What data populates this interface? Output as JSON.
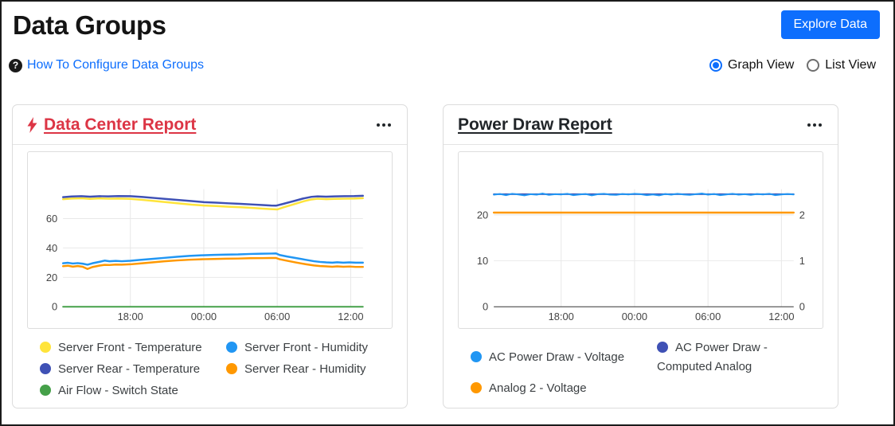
{
  "page": {
    "title": "Data Groups",
    "help_link": "How To Configure Data Groups",
    "explore_button": "Explore Data",
    "view_options": [
      {
        "label": "Graph View",
        "selected": true
      },
      {
        "label": "List View",
        "selected": false
      }
    ]
  },
  "colors": {
    "accent_blue": "#0d6efd",
    "danger_red": "#dc3545",
    "series_yellow": "#FFE43B",
    "series_indigo": "#3F51B5",
    "series_green": "#45A049",
    "series_blue": "#2196F3",
    "series_orange": "#FF9800"
  },
  "cards": [
    {
      "title": "Data Center Report",
      "has_bolt": true,
      "legend_rows": 3,
      "legend": [
        {
          "label": "Server Front - Temperature",
          "color": "#FFE43B"
        },
        {
          "label": "Server Rear - Temperature",
          "color": "#3F51B5"
        },
        {
          "label": "Air Flow - Switch State",
          "color": "#45A049"
        },
        {
          "label": "Server Front - Humidity",
          "color": "#2196F3"
        },
        {
          "label": "Server Rear - Humidity",
          "color": "#FF9800"
        }
      ]
    },
    {
      "title": "Power Draw Report",
      "has_bolt": false,
      "legend_rows": 2,
      "legend": [
        {
          "label": "AC Power Draw - Voltage",
          "color": "#2196F3"
        },
        {
          "label": "Analog 2 - Voltage",
          "color": "#FF9800"
        },
        {
          "label": "AC Power Draw - Computed Analog",
          "color": "#3F51B5"
        }
      ]
    }
  ],
  "chart_data": [
    {
      "type": "line",
      "title": "Data Center Report",
      "x_max": 24.5,
      "x_ticks": [
        {
          "t": 5.5,
          "label": "18:00"
        },
        {
          "t": 11.5,
          "label": "00:00"
        },
        {
          "t": 17.5,
          "label": "06:00"
        },
        {
          "t": 23.5,
          "label": "12:00"
        }
      ],
      "y_left": {
        "min": 0,
        "max": 80,
        "ticks": [
          0,
          20,
          40,
          60
        ]
      },
      "series": [
        {
          "name": "Server Front - Temperature",
          "color": "#FFE43B",
          "width": 2.5,
          "axis": "left",
          "points": [
            [
              0,
              73.2
            ],
            [
              0.7,
              73.6
            ],
            [
              1.5,
              73.8
            ],
            [
              2.2,
              73.4
            ],
            [
              3,
              73.7
            ],
            [
              3.7,
              73.5
            ],
            [
              4.5,
              73.6
            ],
            [
              5.5,
              73.4
            ],
            [
              6.5,
              72.7
            ],
            [
              7.5,
              71.9
            ],
            [
              8.5,
              71.1
            ],
            [
              9.5,
              70.3
            ],
            [
              10.5,
              69.5
            ],
            [
              11.5,
              68.9
            ],
            [
              12.5,
              68.5
            ],
            [
              13.5,
              68.1
            ],
            [
              14.5,
              67.7
            ],
            [
              15.5,
              67.2
            ],
            [
              16.3,
              66.8
            ],
            [
              17,
              66.4
            ],
            [
              17.5,
              66.2
            ],
            [
              18,
              67.6
            ],
            [
              18.8,
              69.6
            ],
            [
              19.6,
              71.6
            ],
            [
              20.3,
              73
            ],
            [
              20.8,
              73.5
            ],
            [
              21.5,
              73.2
            ],
            [
              22.2,
              73.4
            ],
            [
              23,
              73.5
            ],
            [
              23.8,
              73.6
            ],
            [
              24.5,
              73.9
            ]
          ]
        },
        {
          "name": "Server Rear - Temperature",
          "color": "#3F51B5",
          "width": 2.5,
          "axis": "left",
          "points": [
            [
              0,
              74.6
            ],
            [
              0.7,
              75
            ],
            [
              1.5,
              75.2
            ],
            [
              2.2,
              74.9
            ],
            [
              3,
              75.2
            ],
            [
              3.7,
              75.1
            ],
            [
              4.5,
              75.3
            ],
            [
              5.5,
              75.2
            ],
            [
              6.5,
              74.7
            ],
            [
              7.5,
              74
            ],
            [
              8.5,
              73.3
            ],
            [
              9.5,
              72.6
            ],
            [
              10.5,
              71.9
            ],
            [
              11.5,
              71.2
            ],
            [
              12.5,
              70.8
            ],
            [
              13.5,
              70.4
            ],
            [
              14.5,
              70
            ],
            [
              15.5,
              69.6
            ],
            [
              16.3,
              69.2
            ],
            [
              17,
              68.9
            ],
            [
              17.4,
              68.8
            ],
            [
              18,
              70
            ],
            [
              18.8,
              71.8
            ],
            [
              19.6,
              73.6
            ],
            [
              20.3,
              74.8
            ],
            [
              20.8,
              75.1
            ],
            [
              21.5,
              74.9
            ],
            [
              22.2,
              75.1
            ],
            [
              23,
              75.2
            ],
            [
              23.8,
              75.3
            ],
            [
              24.5,
              75.5
            ]
          ]
        },
        {
          "name": "Server Rear - Humidity",
          "color": "#FF9800",
          "width": 2.5,
          "axis": "left",
          "points": [
            [
              0,
              27.6
            ],
            [
              0.4,
              27.9
            ],
            [
              0.8,
              27.3
            ],
            [
              1.2,
              27.7
            ],
            [
              1.6,
              27.2
            ],
            [
              2,
              25.7
            ],
            [
              2.4,
              27
            ],
            [
              3,
              28
            ],
            [
              3.4,
              28.5
            ],
            [
              3.8,
              28.4
            ],
            [
              4.3,
              28.7
            ],
            [
              4.8,
              28.6
            ],
            [
              5.5,
              28.9
            ],
            [
              6.3,
              29.5
            ],
            [
              7.3,
              30.2
            ],
            [
              8.3,
              30.9
            ],
            [
              9.3,
              31.5
            ],
            [
              10.3,
              32
            ],
            [
              11.3,
              32.3
            ],
            [
              12.3,
              32.5
            ],
            [
              13.3,
              32.7
            ],
            [
              14.3,
              32.8
            ],
            [
              15.3,
              33
            ],
            [
              16.2,
              33.1
            ],
            [
              17,
              33.2
            ],
            [
              17.4,
              33.2
            ],
            [
              17.7,
              32.3
            ],
            [
              18.3,
              31.3
            ],
            [
              19,
              30.2
            ],
            [
              19.8,
              29
            ],
            [
              20.5,
              28.1
            ],
            [
              21,
              27.7
            ],
            [
              21.5,
              27.5
            ],
            [
              22,
              27.2
            ],
            [
              22.4,
              27.5
            ],
            [
              22.9,
              27.2
            ],
            [
              23.4,
              27.4
            ],
            [
              23.9,
              27.1
            ],
            [
              24.5,
              27.1
            ]
          ]
        },
        {
          "name": "Server Front - Humidity",
          "color": "#2196F3",
          "width": 2.5,
          "axis": "left",
          "points": [
            [
              0,
              29.6
            ],
            [
              0.4,
              29.9
            ],
            [
              0.8,
              29.4
            ],
            [
              1.2,
              29.7
            ],
            [
              1.6,
              29.3
            ],
            [
              2,
              28.6
            ],
            [
              2.4,
              29.6
            ],
            [
              3,
              30.6
            ],
            [
              3.4,
              31.4
            ],
            [
              3.8,
              30.9
            ],
            [
              4.3,
              31.2
            ],
            [
              4.8,
              31
            ],
            [
              5.5,
              31.3
            ],
            [
              6.3,
              31.9
            ],
            [
              7.3,
              32.6
            ],
            [
              8.3,
              33.3
            ],
            [
              9.3,
              34
            ],
            [
              10.3,
              34.6
            ],
            [
              11.3,
              35
            ],
            [
              12.3,
              35.3
            ],
            [
              13.3,
              35.5
            ],
            [
              14.3,
              35.6
            ],
            [
              15.3,
              35.9
            ],
            [
              16.2,
              36.1
            ],
            [
              17,
              36.2
            ],
            [
              17.4,
              36.3
            ],
            [
              17.7,
              35.2
            ],
            [
              18.3,
              34.2
            ],
            [
              19,
              33.2
            ],
            [
              19.8,
              32
            ],
            [
              20.5,
              31
            ],
            [
              21,
              30.5
            ],
            [
              21.5,
              30.2
            ],
            [
              22,
              30
            ],
            [
              22.4,
              30.3
            ],
            [
              22.9,
              30
            ],
            [
              23.4,
              30.2
            ],
            [
              23.9,
              30
            ],
            [
              24.5,
              30
            ]
          ]
        },
        {
          "name": "Air Flow - Switch State",
          "color": "#45A049",
          "width": 2,
          "axis": "left",
          "points": [
            [
              0,
              0
            ],
            [
              24.5,
              0
            ]
          ]
        }
      ]
    },
    {
      "type": "line",
      "title": "Power Draw Report",
      "x_max": 24.5,
      "x_ticks": [
        {
          "t": 5.5,
          "label": "18:00"
        },
        {
          "t": 11.5,
          "label": "00:00"
        },
        {
          "t": 17.5,
          "label": "06:00"
        },
        {
          "t": 23.5,
          "label": "12:00"
        }
      ],
      "y_left": {
        "min": 0,
        "max": 25.6,
        "ticks": [
          0,
          10,
          20
        ]
      },
      "y_right": {
        "min": 0,
        "max": 2.56,
        "ticks": [
          0,
          1,
          2
        ]
      },
      "series": [
        {
          "name": "AC Power Draw - Computed Analog",
          "color": "#3F51B5",
          "width": 2,
          "axis": "right",
          "points": [
            [
              0,
              2.45
            ],
            [
              24.5,
              2.45
            ]
          ]
        },
        {
          "name": "AC Power Draw - Voltage",
          "color": "#2196F3",
          "width": 2,
          "axis": "left",
          "points": [
            [
              0,
              24.4
            ],
            [
              0.5,
              24.55
            ],
            [
              1,
              24.3
            ],
            [
              1.5,
              24.6
            ],
            [
              2,
              24.45
            ],
            [
              2.5,
              24.25
            ],
            [
              3,
              24.5
            ],
            [
              3.5,
              24.4
            ],
            [
              4,
              24.65
            ],
            [
              4.5,
              24.35
            ],
            [
              5,
              24.5
            ],
            [
              5.5,
              24.45
            ],
            [
              6,
              24.6
            ],
            [
              6.5,
              24.3
            ],
            [
              7,
              24.45
            ],
            [
              7.5,
              24.55
            ],
            [
              8,
              24.25
            ],
            [
              8.5,
              24.5
            ],
            [
              9,
              24.6
            ],
            [
              9.5,
              24.4
            ],
            [
              10,
              24.35
            ],
            [
              10.5,
              24.55
            ],
            [
              11,
              24.45
            ],
            [
              11.5,
              24.6
            ],
            [
              12,
              24.5
            ],
            [
              12.5,
              24.3
            ],
            [
              13,
              24.45
            ],
            [
              13.5,
              24.25
            ],
            [
              14,
              24.55
            ],
            [
              14.5,
              24.4
            ],
            [
              15,
              24.6
            ],
            [
              15.5,
              24.45
            ],
            [
              16,
              24.35
            ],
            [
              16.5,
              24.5
            ],
            [
              17,
              24.65
            ],
            [
              17.5,
              24.4
            ],
            [
              18,
              24.55
            ],
            [
              18.5,
              24.3
            ],
            [
              19,
              24.45
            ],
            [
              19.5,
              24.6
            ],
            [
              20,
              24.4
            ],
            [
              20.5,
              24.5
            ],
            [
              21,
              24.35
            ],
            [
              21.5,
              24.55
            ],
            [
              22,
              24.45
            ],
            [
              22.5,
              24.6
            ],
            [
              23,
              24.3
            ],
            [
              23.5,
              24.45
            ],
            [
              24,
              24.55
            ],
            [
              24.5,
              24.45
            ]
          ]
        },
        {
          "name": "Analog 2 - Voltage",
          "color": "#FF9800",
          "width": 2.5,
          "axis": "left",
          "points": [
            [
              0,
              20.5
            ],
            [
              24.5,
              20.5
            ]
          ]
        }
      ]
    }
  ]
}
